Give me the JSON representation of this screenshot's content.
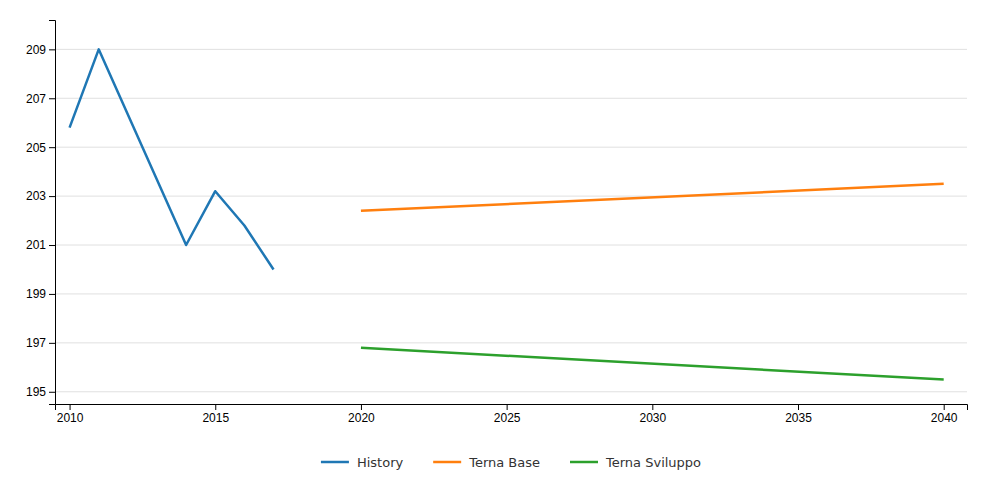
{
  "chart_data": {
    "type": "line",
    "series": [
      {
        "name": "History",
        "x": [
          2010,
          2011,
          2014,
          2015,
          2016,
          2017
        ],
        "values": [
          205.8,
          209.0,
          201.0,
          203.2,
          201.8,
          200.0
        ]
      },
      {
        "name": "Terna Base",
        "x": [
          2020,
          2040
        ],
        "values": [
          202.4,
          203.5
        ]
      },
      {
        "name": "Terna Sviluppo",
        "x": [
          2020,
          2040
        ],
        "values": [
          196.8,
          195.5
        ]
      }
    ],
    "xlim": [
      2009.5,
      2040.8
    ],
    "ylim": [
      194.5,
      210.2
    ],
    "xticks": [
      2010,
      2015,
      2020,
      2025,
      2030,
      2035,
      2040
    ],
    "yticks": [
      195,
      197,
      199,
      201,
      203,
      205,
      207,
      209
    ],
    "grid": true,
    "legend": "bottom"
  }
}
